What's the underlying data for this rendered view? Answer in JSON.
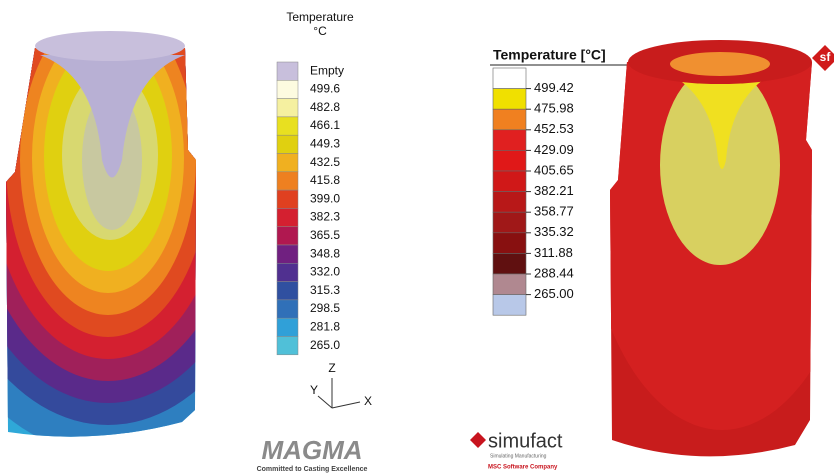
{
  "left_legend": {
    "title": "Temperature",
    "unit": "°C",
    "entries": [
      "Empty",
      "499.6",
      "482.8",
      "466.1",
      "449.3",
      "432.5",
      "415.8",
      "399.0",
      "382.3",
      "365.5",
      "348.8",
      "332.0",
      "315.3",
      "298.5",
      "281.8",
      "265.0"
    ]
  },
  "axes": {
    "z": "Z",
    "y": "Y",
    "x": "X"
  },
  "magma_logo": {
    "name": "MAGMA",
    "tagline": "Committed to Casting Excellence"
  },
  "right_legend": {
    "title": "Temperature [°C]",
    "entries": [
      "499.42",
      "475.98",
      "452.53",
      "429.09",
      "405.65",
      "382.21",
      "358.77",
      "335.32",
      "311.88",
      "288.44",
      "265.00"
    ]
  },
  "simufact_logo": {
    "name": "simufact",
    "tagline": "Simulating Manufacturing",
    "company": "MSC Software Company",
    "badge": "sf"
  }
}
